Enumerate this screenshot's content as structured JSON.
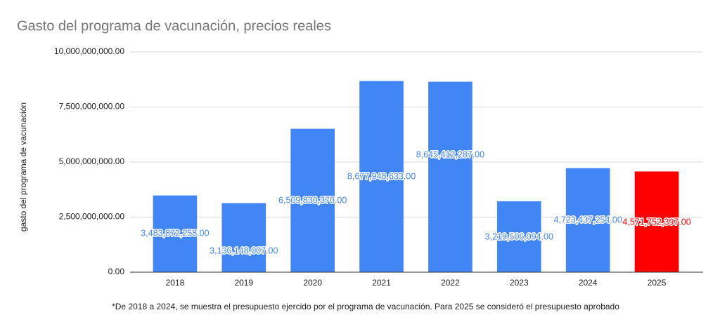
{
  "chart_data": {
    "type": "bar",
    "title": "Gasto del programa de vacunación, precios reales",
    "y_label": "gasto del programa de vacunación",
    "footnote": "*De 2018 a 2024, se muestra el presupuesto ejercido por el programa de vacunación. Para 2025 se consideró el presupuesto aprobado",
    "categories": [
      "2018",
      "2019",
      "2020",
      "2021",
      "2022",
      "2023",
      "2024",
      "2025"
    ],
    "values": [
      3483872258,
      3136148007,
      6509830370,
      8677948633,
      8645412287,
      3219506094,
      4723437254,
      4571752397
    ],
    "value_labels": [
      "3,483,872,258.00",
      "3,136,148,007.00",
      "6,509,830,370.00",
      "8,677,948,633.00",
      "8,645,412,287.00",
      "3,219,506,094.00",
      "4,723,437,254.00",
      "4,571,752,397.00"
    ],
    "colors": [
      "#4285f4",
      "#4285f4",
      "#4285f4",
      "#4285f4",
      "#4285f4",
      "#4285f4",
      "#4285f4",
      "#ff0000"
    ],
    "ylim": [
      0,
      10000000000
    ],
    "yticks": [
      {
        "value": 0,
        "label": "0.00"
      },
      {
        "value": 2500000000,
        "label": "2,500,000,000.00"
      },
      {
        "value": 5000000000,
        "label": "5,000,000,000.00"
      },
      {
        "value": 7500000000,
        "label": "7,500,000,000.00"
      },
      {
        "value": 10000000000,
        "label": "10,000,000,000.00"
      }
    ],
    "grid": true
  }
}
